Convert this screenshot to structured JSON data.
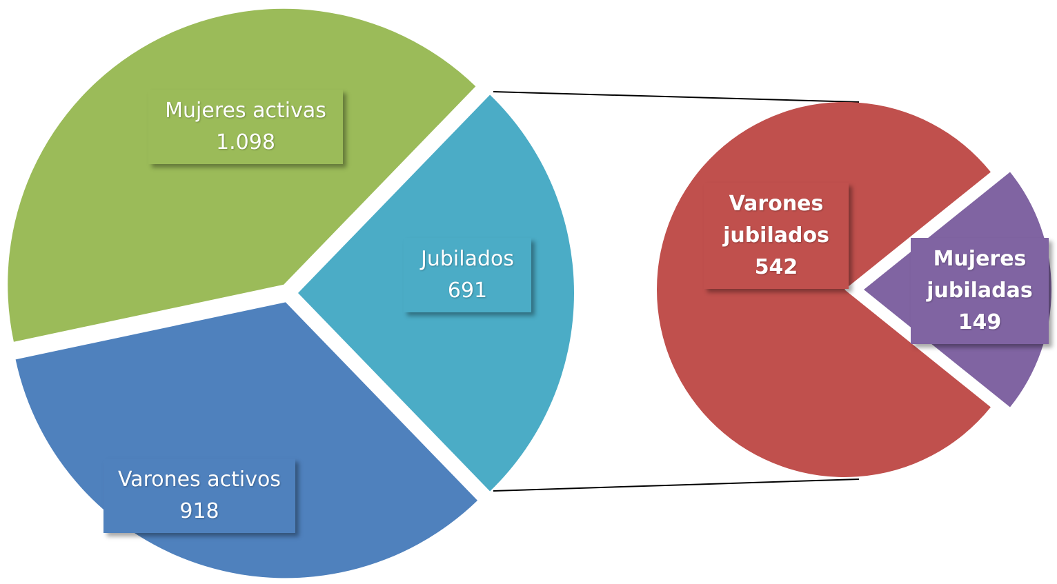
{
  "chart_data": [
    {
      "type": "pie",
      "categories": [
        "Jubilados",
        "Mujeres activas",
        "Varones activos"
      ],
      "values": [
        691,
        1098,
        918
      ],
      "value_labels": [
        "691",
        "1.098",
        "918"
      ],
      "colors": [
        "#4bacc6",
        "#9bbb59",
        "#4f81bd"
      ]
    },
    {
      "type": "pie",
      "categories": [
        "Mujeres jubiladas",
        "Varones jubilados"
      ],
      "values": [
        149,
        542
      ],
      "value_labels": [
        "149",
        "542"
      ],
      "colors": [
        "#8064a2",
        "#c0504d"
      ]
    }
  ]
}
